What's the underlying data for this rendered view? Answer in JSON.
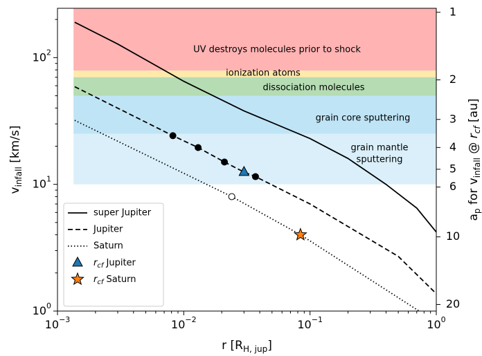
{
  "chart_data": {
    "type": "line",
    "xlabel": {
      "main": "r [R",
      "sub": "H, jup",
      "end": "]"
    },
    "ylabel": {
      "main": "v",
      "sub": "infall",
      "end": " [km/s]"
    },
    "y2label": {
      "a": "a",
      "asub": "p",
      "mid": " for v",
      "vsub": "infall",
      "at": " @ ",
      "r": "r",
      "rsub": "cf",
      "end": " [au]"
    },
    "log_x": true,
    "log_y": true,
    "xlim": [
      0.001,
      1
    ],
    "xticks": [
      {
        "value": 0.001,
        "label": "10",
        "exponent": "−3"
      },
      {
        "value": 0.01,
        "label": "10",
        "exponent": "−2"
      },
      {
        "value": 0.1,
        "label": "10",
        "exponent": "−1"
      },
      {
        "value": 1,
        "label": "10",
        "exponent": "0"
      }
    ],
    "ylim": [
      1,
      245
    ],
    "yticks": [
      {
        "value": 1,
        "label": "10",
        "exponent": "0"
      },
      {
        "value": 10,
        "label": "10",
        "exponent": "1"
      },
      {
        "value": 100,
        "label": "10",
        "exponent": "2"
      }
    ],
    "y2lim": [
      21.4,
      0.96
    ],
    "y2ticks": [
      1,
      2,
      3,
      4,
      5,
      6,
      10,
      20
    ],
    "bands": [
      {
        "label": [
          "UV destroys molecules prior to shock"
        ],
        "from": 79,
        "to": 245,
        "xfrom": 0.00134,
        "xto": 1,
        "color": "#ffb3b3"
      },
      {
        "label": [
          "ionization atoms"
        ],
        "from": 70,
        "to": 79,
        "xfrom": 0.00134,
        "xto": 1,
        "color": "#ffe9ab"
      },
      {
        "label": [
          "dissociation molecules"
        ],
        "from": 50,
        "to": 70,
        "xfrom": 0.00134,
        "xto": 1,
        "color": "#b5dcb3"
      },
      {
        "label": [
          "grain core sputtering"
        ],
        "from": 25,
        "to": 50,
        "xfrom": 0.00134,
        "xto": 1,
        "color": "#bfe4f5"
      },
      {
        "label": [
          "grain mantle",
          "sputtering"
        ],
        "from": 10,
        "to": 25,
        "xfrom": 0.00134,
        "xto": 1,
        "color": "#daeff9"
      }
    ],
    "series": [
      {
        "name": "super Jupiter",
        "dash": "solid",
        "color": "#000000",
        "x": [
          0.00137,
          0.003,
          0.01,
          0.03,
          0.1,
          0.2,
          0.4,
          0.7,
          1
        ],
        "values": [
          190,
          128,
          65,
          38,
          23,
          16,
          10,
          6.5,
          4.2
        ]
      },
      {
        "name": "Jupiter",
        "dash": "dashed",
        "color": "#000000",
        "x": [
          0.00137,
          0.0082,
          0.013,
          0.021,
          0.03,
          0.037,
          0.1,
          0.5,
          1
        ],
        "values": [
          59,
          24.2,
          19.5,
          15,
          12.5,
          11.5,
          7,
          2.7,
          1.37
        ]
      },
      {
        "name": "Saturn",
        "dash": "dotted",
        "color": "#000000",
        "x": [
          0.00137,
          0.024,
          0.084,
          0.73
        ],
        "values": [
          32,
          8,
          4,
          1
        ]
      }
    ],
    "points": [
      {
        "x": 0.0082,
        "y": 24.2,
        "marker": "circle",
        "fill": "#000000"
      },
      {
        "x": 0.013,
        "y": 19.5,
        "marker": "circle",
        "fill": "#000000"
      },
      {
        "x": 0.021,
        "y": 15,
        "marker": "circle",
        "fill": "#000000"
      },
      {
        "x": 0.037,
        "y": 11.5,
        "marker": "circle",
        "fill": "#000000"
      },
      {
        "x": 0.024,
        "y": 8,
        "marker": "circle",
        "fill": "#ffffff"
      },
      {
        "x": 0.03,
        "y": 12.5,
        "marker": "triangle",
        "fill": "#1f77b4"
      },
      {
        "x": 0.084,
        "y": 4,
        "marker": "star",
        "fill": "#ff7f0e"
      }
    ],
    "legend_markers": [
      {
        "symbol": "r",
        "sub": "cf",
        "name": " Jupiter",
        "marker": "triangle",
        "fill": "#1f77b4"
      },
      {
        "symbol": "r",
        "sub": "cf",
        "name": " Saturn",
        "marker": "star",
        "fill": "#ff7f0e"
      }
    ],
    "legend": "lower left"
  }
}
